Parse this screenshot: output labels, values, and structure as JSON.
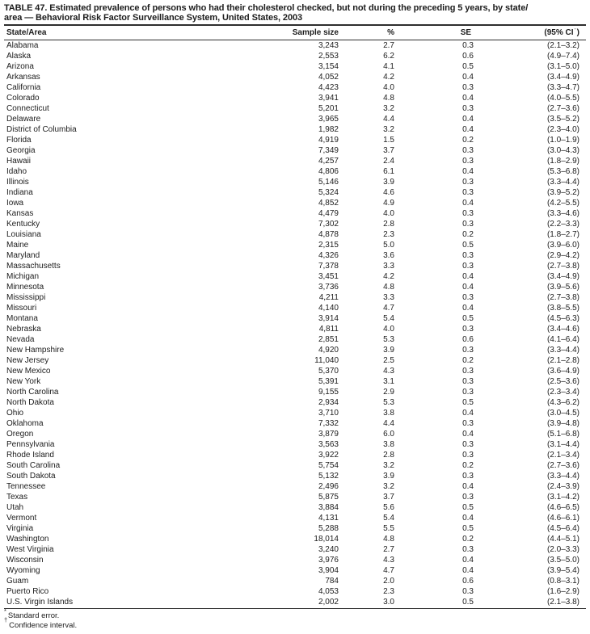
{
  "page": {
    "background_color": "#ffffff",
    "text_color": "#1c1c1c",
    "rule_color": "#2e2e2e"
  },
  "table": {
    "title_line1": "TABLE 47. Estimated prevalence of persons who had their cholesterol checked, but not during the preceding 5 years, by state/",
    "title_line2": "area — Behavioral Risk Factor Surveillance System, United States, 2003",
    "columns": {
      "state": "State/Area",
      "sample": "Sample size",
      "pct": "%",
      "se_base": "SE",
      "se_sup": "*",
      "ci_base": "(95% CI",
      "ci_sup": "†",
      "ci_close": ")"
    },
    "rows": [
      {
        "state": "Alabama",
        "sample": "3,243",
        "pct": "2.7",
        "se": "0.3",
        "ci": "(2.1–3.2)"
      },
      {
        "state": "Alaska",
        "sample": "2,553",
        "pct": "6.2",
        "se": "0.6",
        "ci": "(4.9–7.4)"
      },
      {
        "state": "Arizona",
        "sample": "3,154",
        "pct": "4.1",
        "se": "0.5",
        "ci": "(3.1–5.0)"
      },
      {
        "state": "Arkansas",
        "sample": "4,052",
        "pct": "4.2",
        "se": "0.4",
        "ci": "(3.4–4.9)"
      },
      {
        "state": "California",
        "sample": "4,423",
        "pct": "4.0",
        "se": "0.3",
        "ci": "(3.3–4.7)"
      },
      {
        "state": "Colorado",
        "sample": "3,941",
        "pct": "4.8",
        "se": "0.4",
        "ci": "(4.0–5.5)"
      },
      {
        "state": "Connecticut",
        "sample": "5,201",
        "pct": "3.2",
        "se": "0.3",
        "ci": "(2.7–3.6)"
      },
      {
        "state": "Delaware",
        "sample": "3,965",
        "pct": "4.4",
        "se": "0.4",
        "ci": "(3.5–5.2)"
      },
      {
        "state": "District of Columbia",
        "sample": "1,982",
        "pct": "3.2",
        "se": "0.4",
        "ci": "(2.3–4.0)"
      },
      {
        "state": "Florida",
        "sample": "4,919",
        "pct": "1.5",
        "se": "0.2",
        "ci": "(1.0–1.9)"
      },
      {
        "state": "Georgia",
        "sample": "7,349",
        "pct": "3.7",
        "se": "0.3",
        "ci": "(3.0–4.3)"
      },
      {
        "state": "Hawaii",
        "sample": "4,257",
        "pct": "2.4",
        "se": "0.3",
        "ci": "(1.8–2.9)"
      },
      {
        "state": "Idaho",
        "sample": "4,806",
        "pct": "6.1",
        "se": "0.4",
        "ci": "(5.3–6.8)"
      },
      {
        "state": "Illinois",
        "sample": "5,146",
        "pct": "3.9",
        "se": "0.3",
        "ci": "(3.3–4.4)"
      },
      {
        "state": "Indiana",
        "sample": "5,324",
        "pct": "4.6",
        "se": "0.3",
        "ci": "(3.9–5.2)"
      },
      {
        "state": "Iowa",
        "sample": "4,852",
        "pct": "4.9",
        "se": "0.4",
        "ci": "(4.2–5.5)"
      },
      {
        "state": "Kansas",
        "sample": "4,479",
        "pct": "4.0",
        "se": "0.3",
        "ci": "(3.3–4.6)"
      },
      {
        "state": "Kentucky",
        "sample": "7,302",
        "pct": "2.8",
        "se": "0.3",
        "ci": "(2.2–3.3)"
      },
      {
        "state": "Louisiana",
        "sample": "4,878",
        "pct": "2.3",
        "se": "0.2",
        "ci": "(1.8–2.7)"
      },
      {
        "state": "Maine",
        "sample": "2,315",
        "pct": "5.0",
        "se": "0.5",
        "ci": "(3.9–6.0)"
      },
      {
        "state": "Maryland",
        "sample": "4,326",
        "pct": "3.6",
        "se": "0.3",
        "ci": "(2.9–4.2)"
      },
      {
        "state": "Massachusetts",
        "sample": "7,378",
        "pct": "3.3",
        "se": "0.3",
        "ci": "(2.7–3.8)"
      },
      {
        "state": "Michigan",
        "sample": "3,451",
        "pct": "4.2",
        "se": "0.4",
        "ci": "(3.4–4.9)"
      },
      {
        "state": "Minnesota",
        "sample": "3,736",
        "pct": "4.8",
        "se": "0.4",
        "ci": "(3.9–5.6)"
      },
      {
        "state": "Mississippi",
        "sample": "4,211",
        "pct": "3.3",
        "se": "0.3",
        "ci": "(2.7–3.8)"
      },
      {
        "state": "Missouri",
        "sample": "4,140",
        "pct": "4.7",
        "se": "0.4",
        "ci": "(3.8–5.5)"
      },
      {
        "state": "Montana",
        "sample": "3,914",
        "pct": "5.4",
        "se": "0.5",
        "ci": "(4.5–6.3)"
      },
      {
        "state": "Nebraska",
        "sample": "4,811",
        "pct": "4.0",
        "se": "0.3",
        "ci": "(3.4–4.6)"
      },
      {
        "state": "Nevada",
        "sample": "2,851",
        "pct": "5.3",
        "se": "0.6",
        "ci": "(4.1–6.4)"
      },
      {
        "state": "New Hampshire",
        "sample": "4,920",
        "pct": "3.9",
        "se": "0.3",
        "ci": "(3.3–4.4)"
      },
      {
        "state": "New Jersey",
        "sample": "11,040",
        "pct": "2.5",
        "se": "0.2",
        "ci": "(2.1–2.8)"
      },
      {
        "state": "New Mexico",
        "sample": "5,370",
        "pct": "4.3",
        "se": "0.3",
        "ci": "(3.6–4.9)"
      },
      {
        "state": "New York",
        "sample": "5,391",
        "pct": "3.1",
        "se": "0.3",
        "ci": "(2.5–3.6)"
      },
      {
        "state": "North Carolina",
        "sample": "9,155",
        "pct": "2.9",
        "se": "0.3",
        "ci": "(2.3–3.4)"
      },
      {
        "state": "North Dakota",
        "sample": "2,934",
        "pct": "5.3",
        "se": "0.5",
        "ci": "(4.3–6.2)"
      },
      {
        "state": "Ohio",
        "sample": "3,710",
        "pct": "3.8",
        "se": "0.4",
        "ci": "(3.0–4.5)"
      },
      {
        "state": "Oklahoma",
        "sample": "7,332",
        "pct": "4.4",
        "se": "0.3",
        "ci": "(3.9–4.8)"
      },
      {
        "state": "Oregon",
        "sample": "3,879",
        "pct": "6.0",
        "se": "0.4",
        "ci": "(5.1–6.8)"
      },
      {
        "state": "Pennsylvania",
        "sample": "3,563",
        "pct": "3.8",
        "se": "0.3",
        "ci": "(3.1–4.4)"
      },
      {
        "state": "Rhode Island",
        "sample": "3,922",
        "pct": "2.8",
        "se": "0.3",
        "ci": "(2.1–3.4)"
      },
      {
        "state": "South Carolina",
        "sample": "5,754",
        "pct": "3.2",
        "se": "0.2",
        "ci": "(2.7–3.6)"
      },
      {
        "state": "South Dakota",
        "sample": "5,132",
        "pct": "3.9",
        "se": "0.3",
        "ci": "(3.3–4.4)"
      },
      {
        "state": "Tennessee",
        "sample": "2,496",
        "pct": "3.2",
        "se": "0.4",
        "ci": "(2.4–3.9)"
      },
      {
        "state": "Texas",
        "sample": "5,875",
        "pct": "3.7",
        "se": "0.3",
        "ci": "(3.1–4.2)"
      },
      {
        "state": "Utah",
        "sample": "3,884",
        "pct": "5.6",
        "se": "0.5",
        "ci": "(4.6–6.5)"
      },
      {
        "state": "Vermont",
        "sample": "4,131",
        "pct": "5.4",
        "se": "0.4",
        "ci": "(4.6–6.1)"
      },
      {
        "state": "Virginia",
        "sample": "5,288",
        "pct": "5.5",
        "se": "0.5",
        "ci": "(4.5–6.4)"
      },
      {
        "state": "Washington",
        "sample": "18,014",
        "pct": "4.8",
        "se": "0.2",
        "ci": "(4.4–5.1)"
      },
      {
        "state": "West Virginia",
        "sample": "3,240",
        "pct": "2.7",
        "se": "0.3",
        "ci": "(2.0–3.3)"
      },
      {
        "state": "Wisconsin",
        "sample": "3,976",
        "pct": "4.3",
        "se": "0.4",
        "ci": "(3.5–5.0)"
      },
      {
        "state": "Wyoming",
        "sample": "3,904",
        "pct": "4.7",
        "se": "0.4",
        "ci": "(3.9–5.4)"
      },
      {
        "state": "Guam",
        "sample": "784",
        "pct": "2.0",
        "se": "0.6",
        "ci": "(0.8–3.1)"
      },
      {
        "state": "Puerto Rico",
        "sample": "4,053",
        "pct": "2.3",
        "se": "0.3",
        "ci": "(1.6–2.9)"
      },
      {
        "state": "U.S. Virgin Islands",
        "sample": "2,002",
        "pct": "3.0",
        "se": "0.5",
        "ci": "(2.1–3.8)"
      }
    ],
    "footnotes": [
      {
        "symbol": "*",
        "text": "Standard error."
      },
      {
        "symbol": "†",
        "text": "Confidence interval."
      }
    ]
  }
}
